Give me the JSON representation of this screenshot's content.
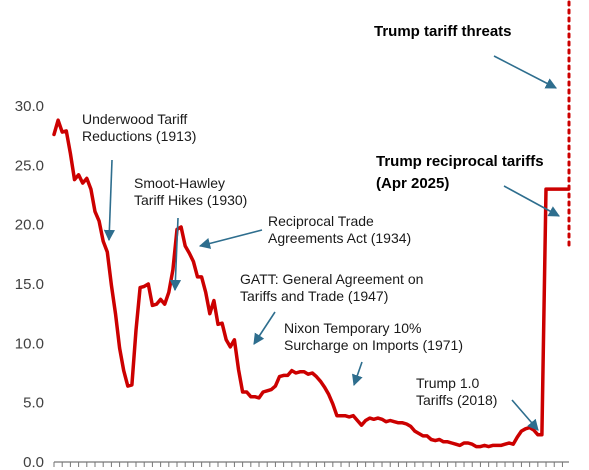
{
  "chart_data": {
    "type": "line",
    "title": "",
    "xlabel": "",
    "ylabel": "",
    "ylim": [
      0,
      30
    ],
    "yticks": [
      {
        "value": 0,
        "label": "0.0"
      },
      {
        "value": 5,
        "label": "5.0"
      },
      {
        "value": 10,
        "label": "10.0"
      },
      {
        "value": 15,
        "label": "15.0"
      },
      {
        "value": 20,
        "label": "20.0"
      },
      {
        "value": 25,
        "label": "25.0"
      },
      {
        "value": 30,
        "label": "30.0"
      }
    ],
    "xlim": [
      1900,
      2025.6
    ],
    "grid": false,
    "x_tick_labels_visible": false,
    "series_color": "#cc0000",
    "threat_line_color": "#cc0000",
    "arrow_color": "#2e6e8e",
    "series": [
      {
        "x": [
          1900,
          1901,
          1902,
          1903,
          1904,
          1905,
          1906,
          1907,
          1908,
          1909,
          1910,
          1911,
          1912,
          1913,
          1914,
          1915,
          1916,
          1917,
          1918,
          1919,
          1920,
          1921,
          1922,
          1923,
          1924,
          1925,
          1926,
          1927,
          1928,
          1929,
          1930,
          1931,
          1932,
          1933,
          1934,
          1935,
          1936,
          1937,
          1938,
          1939,
          1940,
          1941,
          1942,
          1943,
          1944,
          1945,
          1946,
          1947,
          1948,
          1949,
          1950,
          1951,
          1952,
          1953,
          1954,
          1955,
          1956,
          1957,
          1958,
          1959,
          1960,
          1961,
          1962,
          1963,
          1964,
          1965,
          1966,
          1967,
          1968,
          1969,
          1970,
          1971,
          1972,
          1973,
          1974,
          1975,
          1976,
          1977,
          1978,
          1979,
          1980,
          1981,
          1982,
          1983,
          1984,
          1985,
          1986,
          1987,
          1988,
          1989,
          1990,
          1991,
          1992,
          1993,
          1994,
          1995,
          1996,
          1997,
          1998,
          1999,
          2000,
          2001,
          2002,
          2003,
          2004,
          2005,
          2006,
          2007,
          2008,
          2009,
          2010,
          2011,
          2012,
          2013,
          2014,
          2015,
          2016,
          2017,
          2018,
          2019,
          2020,
          2021,
          2022,
          2023,
          2024,
          2025,
          2025.5
        ],
        "y": [
          27.6,
          28.8,
          27.8,
          27.9,
          26.0,
          23.8,
          24.2,
          23.5,
          23.9,
          23.0,
          21.1,
          20.3,
          18.6,
          17.7,
          14.9,
          12.5,
          9.6,
          7.7,
          6.4,
          6.5,
          11.1,
          14.7,
          14.8,
          15.0,
          13.2,
          13.3,
          13.7,
          13.3,
          14.3,
          16.2,
          19.6,
          19.8,
          18.2,
          17.6,
          16.9,
          15.6,
          15.6,
          14.3,
          12.5,
          13.6,
          11.6,
          11.7,
          10.3,
          9.7,
          10.3,
          7.8,
          5.9,
          5.9,
          5.5,
          5.5,
          5.4,
          5.9,
          6.0,
          6.1,
          6.4,
          7.2,
          7.3,
          7.3,
          7.7,
          7.5,
          7.6,
          7.6,
          7.4,
          7.5,
          7.2,
          6.8,
          6.3,
          5.7,
          4.9,
          3.9,
          3.9,
          3.9,
          3.8,
          3.9,
          3.5,
          3.1,
          3.5,
          3.7,
          3.6,
          3.7,
          3.6,
          3.4,
          3.5,
          3.4,
          3.3,
          3.3,
          3.2,
          3.0,
          2.6,
          2.4,
          2.2,
          2.2,
          1.9,
          1.8,
          1.9,
          1.7,
          1.7,
          1.6,
          1.5,
          1.4,
          1.6,
          1.6,
          1.5,
          1.3,
          1.3,
          1.4,
          1.3,
          1.4,
          1.4,
          1.4,
          1.5,
          1.6,
          1.5,
          2.1,
          2.6,
          2.8,
          2.9,
          2.7,
          2.3,
          2.3,
          23.0,
          23.0,
          23.0,
          23.0,
          23.0,
          23.0,
          23.0
        ]
      }
    ],
    "annotations": [
      {
        "id": "underwood",
        "lines": [
          "Underwood Tariff",
          "Reductions (1913)"
        ],
        "bold": false
      },
      {
        "id": "smoot",
        "lines": [
          "Smoot-Hawley",
          "Tariff Hikes (1930)"
        ],
        "bold": false
      },
      {
        "id": "reciprocal",
        "lines": [
          "Reciprocal Trade",
          "Agreements Act (1934)"
        ],
        "bold": false
      },
      {
        "id": "gatt",
        "lines": [
          "GATT: General Agreement on",
          "Tariffs and Trade (1947)"
        ],
        "bold": false
      },
      {
        "id": "nixon",
        "lines": [
          "Nixon Temporary 10%",
          "Surcharge on Imports (1971)"
        ],
        "bold": false
      },
      {
        "id": "trump1",
        "lines": [
          "Trump 1.0",
          "Tariffs (2018)"
        ],
        "bold": false
      },
      {
        "id": "trump_threats",
        "lines": [
          "Trump tariff threats"
        ],
        "bold": true
      },
      {
        "id": "trump_reciprocal",
        "lines": [
          "Trump reciprocal tariffs",
          "(Apr 2025)"
        ],
        "bold": true
      }
    ]
  }
}
